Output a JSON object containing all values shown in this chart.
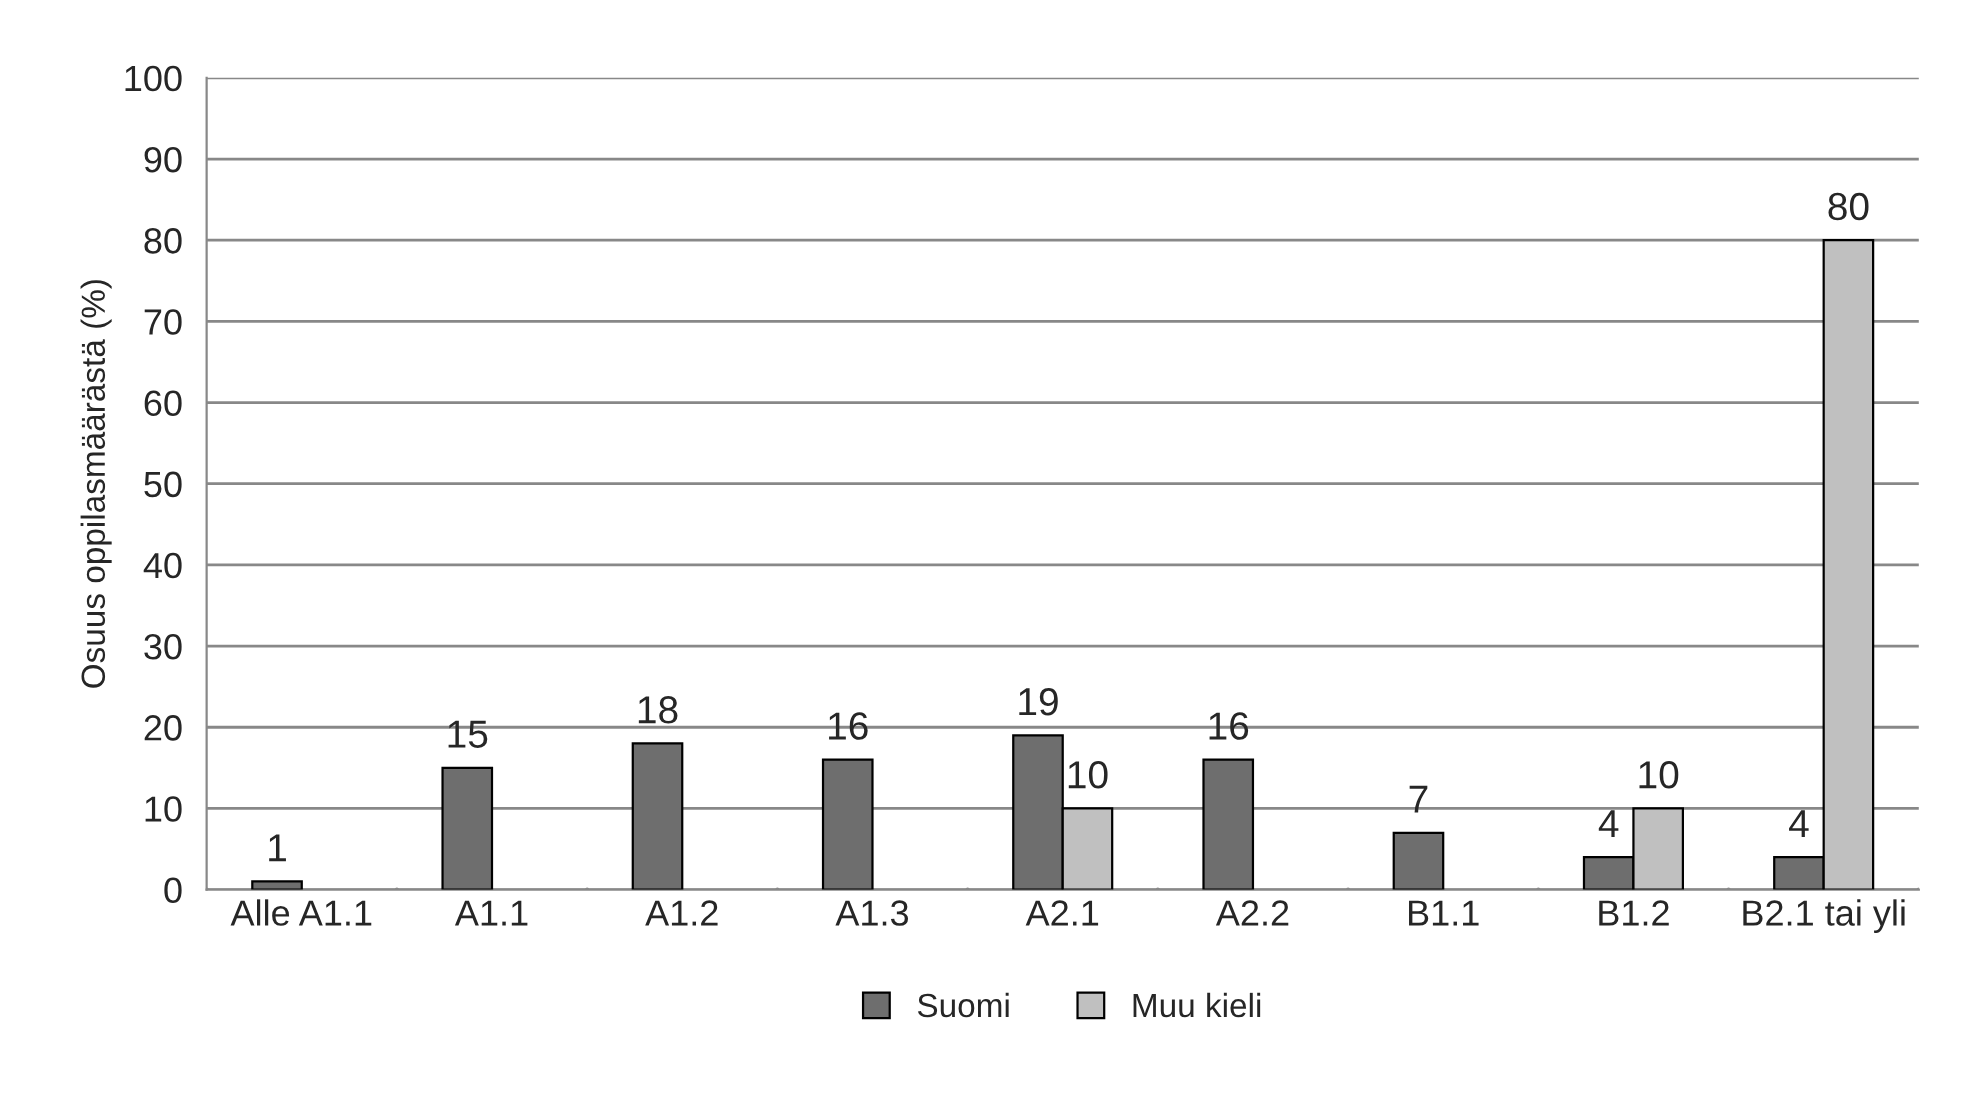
{
  "chart_data": {
    "type": "bar",
    "ylabel": "Osuus oppilasmäärästä (%)",
    "categories": [
      "Alle A1.1",
      "A1.1",
      "A1.2",
      "A1.3",
      "A2.1",
      "A2.2",
      "B1.1",
      "B1.2",
      "B2.1 tai yli"
    ],
    "series": [
      {
        "name": "Suomi",
        "color": "#6e6e6e",
        "values": [
          1,
          15,
          18,
          16,
          19,
          16,
          7,
          4,
          4
        ]
      },
      {
        "name": "Muu kieli",
        "color": "#c0c0c0",
        "values": [
          null,
          null,
          null,
          null,
          10,
          null,
          null,
          10,
          80
        ]
      }
    ],
    "ylim": [
      0,
      100
    ],
    "yticks": [
      0,
      10,
      20,
      30,
      40,
      50,
      60,
      70,
      80,
      90,
      100
    ],
    "grid": "y",
    "legend": "bottom",
    "data_labels": true
  }
}
